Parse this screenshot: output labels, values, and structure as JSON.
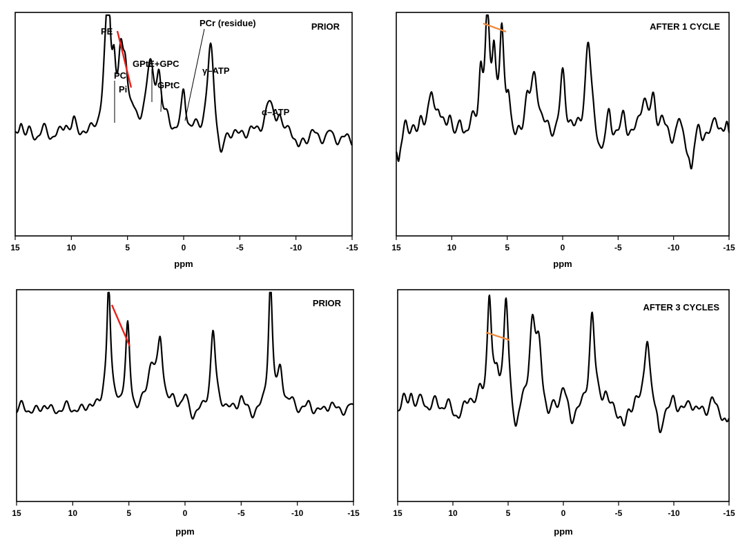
{
  "chart_data": [
    {
      "type": "line",
      "title": "PRIOR",
      "xlabel": "ppm",
      "ylabel": "",
      "xlim": [
        15,
        -15
      ],
      "x_ticks": [
        15,
        10,
        5,
        0,
        -5,
        -10,
        -15
      ],
      "grid": false,
      "y_range": [
        -0.15,
        1.05
      ],
      "peaks": [
        {
          "x": 14.5,
          "h": 0.12,
          "w": 0.25
        },
        {
          "x": 13.8,
          "h": 0.05,
          "w": 0.25
        },
        {
          "x": 12.5,
          "h": 0.08,
          "w": 0.35
        },
        {
          "x": 11.2,
          "h": 0.04,
          "w": 0.3
        },
        {
          "x": 10.5,
          "h": 0.09,
          "w": 0.25
        },
        {
          "x": 9.8,
          "h": 0.11,
          "w": 0.25
        },
        {
          "x": 9.0,
          "h": 0.03,
          "w": 0.4
        },
        {
          "x": 8.0,
          "h": 0.04,
          "w": 0.4
        },
        {
          "x": 7.0,
          "h": 0.26,
          "w": 0.3
        },
        {
          "x": 6.7,
          "h": 0.82,
          "w": 0.25
        },
        {
          "x": 6.2,
          "h": 0.32,
          "w": 0.2
        },
        {
          "x": 5.6,
          "h": 0.4,
          "w": 0.28
        },
        {
          "x": 5.2,
          "h": 0.38,
          "w": 0.28
        },
        {
          "x": 4.6,
          "h": 0.1,
          "w": 0.3
        },
        {
          "x": 3.0,
          "h": 0.45,
          "w": 0.5
        },
        {
          "x": 2.2,
          "h": 0.32,
          "w": 0.28
        },
        {
          "x": 1.4,
          "h": 0.08,
          "w": 0.3
        },
        {
          "x": 0.0,
          "h": 0.3,
          "w": 0.25
        },
        {
          "x": -1.0,
          "h": 0.05,
          "w": 0.3
        },
        {
          "x": -2.4,
          "h": 0.62,
          "w": 0.38
        },
        {
          "x": -3.3,
          "h": -0.18,
          "w": 0.28
        },
        {
          "x": -4.5,
          "h": 0.05,
          "w": 0.4
        },
        {
          "x": -6.0,
          "h": 0.06,
          "w": 0.4
        },
        {
          "x": -7.6,
          "h": 0.24,
          "w": 0.5
        },
        {
          "x": -8.5,
          "h": 0.12,
          "w": 0.3
        },
        {
          "x": -9.5,
          "h": 0.07,
          "w": 0.35
        },
        {
          "x": -10.2,
          "h": -0.07,
          "w": 0.3
        },
        {
          "x": -11.5,
          "h": 0.06,
          "w": 0.35
        },
        {
          "x": -13.0,
          "h": 0.06,
          "w": 0.3
        },
        {
          "x": -14.5,
          "h": 0.03,
          "w": 0.3
        }
      ],
      "ripple": 0.035,
      "annotations": [
        "PE",
        "PC",
        "Pi",
        "GPtE+GPC",
        "GPtC",
        "PCr (residue)",
        "γ–ATP",
        "α–ATP"
      ],
      "slope_color": "#e8201a"
    },
    {
      "type": "line",
      "title": "AFTER 1 CYCLE",
      "xlabel": "ppm",
      "ylabel": "",
      "xlim": [
        15,
        -15
      ],
      "x_ticks": [
        15,
        10,
        5,
        0,
        -5,
        -10,
        -15
      ],
      "grid": false,
      "y_range": [
        -0.35,
        1.0
      ],
      "peaks": [
        {
          "x": 14.8,
          "h": -0.25,
          "w": 0.2
        },
        {
          "x": 14.2,
          "h": 0.18,
          "w": 0.3
        },
        {
          "x": 12.8,
          "h": 0.16,
          "w": 0.3
        },
        {
          "x": 11.8,
          "h": 0.34,
          "w": 0.3
        },
        {
          "x": 11.2,
          "h": 0.16,
          "w": 0.25
        },
        {
          "x": 10.2,
          "h": 0.18,
          "w": 0.3
        },
        {
          "x": 9.5,
          "h": -0.05,
          "w": 0.3
        },
        {
          "x": 9.2,
          "h": 0.12,
          "w": 0.25
        },
        {
          "x": 8.2,
          "h": 0.08,
          "w": 0.3
        },
        {
          "x": 7.4,
          "h": 0.42,
          "w": 0.22
        },
        {
          "x": 6.8,
          "h": 0.8,
          "w": 0.26
        },
        {
          "x": 6.2,
          "h": 0.55,
          "w": 0.22
        },
        {
          "x": 5.5,
          "h": 0.7,
          "w": 0.24
        },
        {
          "x": 4.9,
          "h": 0.28,
          "w": 0.22
        },
        {
          "x": 4.2,
          "h": -0.08,
          "w": 0.25
        },
        {
          "x": 3.2,
          "h": 0.25,
          "w": 0.3
        },
        {
          "x": 2.5,
          "h": 0.42,
          "w": 0.4
        },
        {
          "x": 1.8,
          "h": 0.05,
          "w": 0.3
        },
        {
          "x": 0.0,
          "h": 0.45,
          "w": 0.3
        },
        {
          "x": -0.7,
          "h": 0.05,
          "w": 0.3
        },
        {
          "x": -2.3,
          "h": 0.72,
          "w": 0.35
        },
        {
          "x": -3.5,
          "h": -0.15,
          "w": 0.3
        },
        {
          "x": -4.2,
          "h": 0.2,
          "w": 0.25
        },
        {
          "x": -5.5,
          "h": 0.16,
          "w": 0.3
        },
        {
          "x": -7.3,
          "h": 0.3,
          "w": 0.4
        },
        {
          "x": -8.2,
          "h": 0.26,
          "w": 0.3
        },
        {
          "x": -9.0,
          "h": 0.12,
          "w": 0.3
        },
        {
          "x": -10.5,
          "h": 0.15,
          "w": 0.25
        },
        {
          "x": -11.6,
          "h": -0.26,
          "w": 0.22
        },
        {
          "x": -12.3,
          "h": 0.12,
          "w": 0.3
        },
        {
          "x": -13.8,
          "h": 0.2,
          "w": 0.3
        },
        {
          "x": -14.8,
          "h": 0.1,
          "w": 0.2
        }
      ],
      "ripple": 0.06,
      "annotations": [],
      "slope_color": "#f08a3c"
    },
    {
      "type": "line",
      "title": "PRIOR",
      "xlabel": "ppm",
      "ylabel": "",
      "xlim": [
        15,
        -15
      ],
      "x_ticks": [
        15,
        10,
        5,
        0,
        -5,
        -10,
        -15
      ],
      "grid": false,
      "y_range": [
        -0.2,
        1.05
      ],
      "peaks": [
        {
          "x": 14.5,
          "h": 0.05,
          "w": 0.3
        },
        {
          "x": 12.5,
          "h": 0.05,
          "w": 0.35
        },
        {
          "x": 10.5,
          "h": 0.04,
          "w": 0.35
        },
        {
          "x": 8.5,
          "h": 0.04,
          "w": 0.35
        },
        {
          "x": 7.2,
          "h": 0.07,
          "w": 0.3
        },
        {
          "x": 6.8,
          "h": 0.88,
          "w": 0.2
        },
        {
          "x": 6.2,
          "h": 0.05,
          "w": 0.25
        },
        {
          "x": 5.1,
          "h": 0.6,
          "w": 0.23
        },
        {
          "x": 4.3,
          "h": -0.06,
          "w": 0.3
        },
        {
          "x": 3.0,
          "h": 0.3,
          "w": 0.5
        },
        {
          "x": 2.2,
          "h": 0.46,
          "w": 0.28
        },
        {
          "x": 1.0,
          "h": 0.05,
          "w": 0.3
        },
        {
          "x": 0.0,
          "h": 0.1,
          "w": 0.3
        },
        {
          "x": -0.7,
          "h": -0.06,
          "w": 0.3
        },
        {
          "x": -2.5,
          "h": 0.58,
          "w": 0.27
        },
        {
          "x": -3.5,
          "h": 0.02,
          "w": 0.3
        },
        {
          "x": -5.0,
          "h": 0.1,
          "w": 0.3
        },
        {
          "x": -6.0,
          "h": -0.04,
          "w": 0.3
        },
        {
          "x": -7.6,
          "h": 0.92,
          "w": 0.22
        },
        {
          "x": -8.5,
          "h": 0.28,
          "w": 0.28
        },
        {
          "x": -9.5,
          "h": 0.06,
          "w": 0.3
        },
        {
          "x": -11.0,
          "h": 0.05,
          "w": 0.3
        },
        {
          "x": -13.0,
          "h": 0.06,
          "w": 0.35
        },
        {
          "x": -14.8,
          "h": 0.05,
          "w": 0.3
        }
      ],
      "ripple": 0.035,
      "annotations": [],
      "slope_color": "#e8201a"
    },
    {
      "type": "line",
      "title": "AFTER 3 CYCLES",
      "xlabel": "ppm",
      "ylabel": "",
      "xlim": [
        15,
        -15
      ],
      "x_ticks": [
        15,
        10,
        5,
        0,
        -5,
        -10,
        -15
      ],
      "grid": false,
      "y_range": [
        -0.3,
        1.05
      ],
      "peaks": [
        {
          "x": 14.5,
          "h": 0.08,
          "w": 0.25
        },
        {
          "x": 13.8,
          "h": 0.14,
          "w": 0.25
        },
        {
          "x": 12.8,
          "h": 0.1,
          "w": 0.3
        },
        {
          "x": 11.5,
          "h": 0.08,
          "w": 0.3
        },
        {
          "x": 10.5,
          "h": 0.05,
          "w": 0.3
        },
        {
          "x": 9.5,
          "h": -0.06,
          "w": 0.3
        },
        {
          "x": 8.5,
          "h": 0.1,
          "w": 0.3
        },
        {
          "x": 7.5,
          "h": 0.1,
          "w": 0.3
        },
        {
          "x": 6.7,
          "h": 0.86,
          "w": 0.24
        },
        {
          "x": 6.0,
          "h": 0.22,
          "w": 0.22
        },
        {
          "x": 5.2,
          "h": 0.84,
          "w": 0.26
        },
        {
          "x": 4.3,
          "h": -0.22,
          "w": 0.25
        },
        {
          "x": 2.8,
          "h": 0.65,
          "w": 0.35
        },
        {
          "x": 2.2,
          "h": 0.4,
          "w": 0.35
        },
        {
          "x": 1.4,
          "h": -0.12,
          "w": 0.25
        },
        {
          "x": 0.0,
          "h": 0.18,
          "w": 0.35
        },
        {
          "x": -0.7,
          "h": -0.12,
          "w": 0.3
        },
        {
          "x": -2.6,
          "h": 0.76,
          "w": 0.3
        },
        {
          "x": -3.8,
          "h": 0.12,
          "w": 0.3
        },
        {
          "x": -5.5,
          "h": -0.14,
          "w": 0.3
        },
        {
          "x": -6.5,
          "h": 0.08,
          "w": 0.3
        },
        {
          "x": -7.6,
          "h": 0.6,
          "w": 0.3
        },
        {
          "x": -8.7,
          "h": -0.2,
          "w": 0.25
        },
        {
          "x": -10.0,
          "h": 0.1,
          "w": 0.3
        },
        {
          "x": -11.5,
          "h": 0.08,
          "w": 0.3
        },
        {
          "x": -13.5,
          "h": 0.1,
          "w": 0.3
        },
        {
          "x": -14.8,
          "h": -0.1,
          "w": 0.25
        }
      ],
      "ripple": 0.05,
      "annotations": [],
      "slope_color": "#f08a3c"
    }
  ]
}
